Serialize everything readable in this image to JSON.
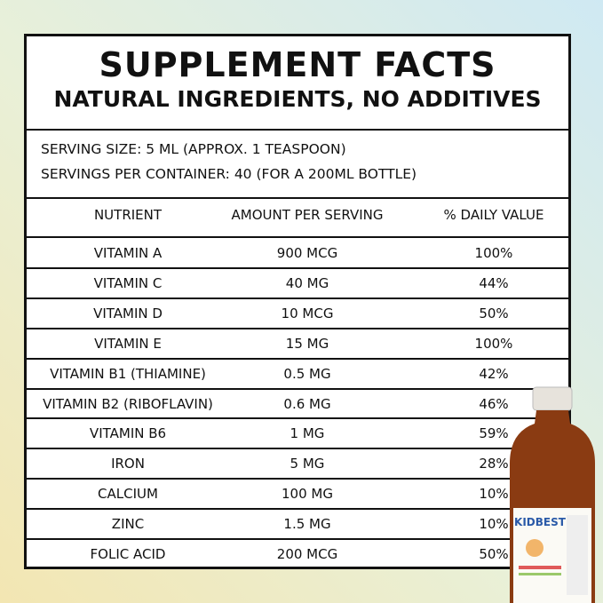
{
  "header": {
    "title": "SUPPLEMENT FACTS",
    "subtitle": "NATURAL INGREDIENTS, NO ADDITIVES"
  },
  "serving": [
    "SERVING SIZE: 5 ML (APPROX. 1 TEASPOON)",
    "SERVINGS PER CONTAINER: 40 (FOR A 200ML BOTTLE)"
  ],
  "table": {
    "columns": [
      "NUTRIENT",
      "AMOUNT PER SERVING",
      "% DAILY VALUE"
    ],
    "rows": [
      [
        "VITAMIN A",
        "900 MCG",
        "100%"
      ],
      [
        "VITAMIN C",
        "40 MG",
        "44%"
      ],
      [
        "VITAMIN D",
        "10 MCG",
        "50%"
      ],
      [
        "VITAMIN E",
        "15 MG",
        "100%"
      ],
      [
        "VITAMIN B1 (THIAMINE)",
        "0.5 MG",
        "42%"
      ],
      [
        "VITAMIN B2 (RIBOFLAVIN)",
        "0.6 MG",
        "46%"
      ],
      [
        "VITAMIN B6",
        "1 MG",
        "59%"
      ],
      [
        "IRON",
        "5 MG",
        "28%"
      ],
      [
        "CALCIUM",
        "100 MG",
        "10%"
      ],
      [
        "ZINC",
        "1.5 MG",
        "10%"
      ],
      [
        "FOLIC ACID",
        "200 MCG",
        "50%"
      ]
    ]
  },
  "product": {
    "label": "KIDBEST"
  }
}
